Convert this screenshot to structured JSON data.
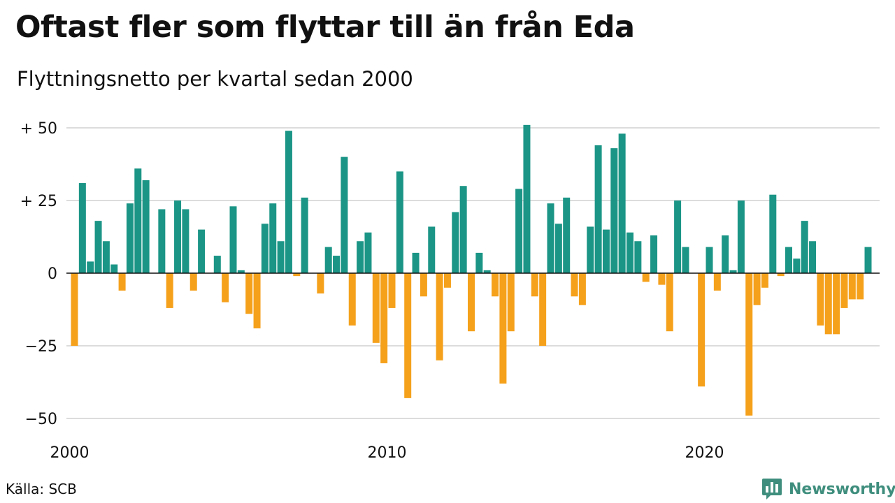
{
  "title": "Oftast fler som flyttar till än från Eda",
  "subtitle": "Flyttningsnetto per kvartal sedan 2000",
  "source": "Källa: SCB",
  "brand": {
    "name": "Newsworthy",
    "icon": "bar-chart-speech-bubble-icon"
  },
  "colors": {
    "positive": "#1b9586",
    "negative": "#f5a11c",
    "grid": "#dcdcdc",
    "brand": "#3f8e7d"
  },
  "chart_data": {
    "type": "bar",
    "x_start": 2000,
    "x_step": "quarter",
    "xticks": [
      {
        "value": 2000,
        "label": "2000"
      },
      {
        "value": 2010,
        "label": "2010"
      },
      {
        "value": 2020,
        "label": "2020"
      }
    ],
    "yticks": [
      {
        "value": 50,
        "label": "+ 50"
      },
      {
        "value": 25,
        "label": "+ 25"
      },
      {
        "value": 0,
        "label": "0"
      },
      {
        "value": -25,
        "label": "−25"
      },
      {
        "value": -50,
        "label": "−50"
      }
    ],
    "ylim": [
      -55,
      55
    ],
    "grid": true,
    "values": [
      -25,
      31,
      4,
      18,
      11,
      3,
      -6,
      24,
      36,
      32,
      0,
      22,
      -12,
      25,
      22,
      -6,
      15,
      0,
      6,
      -10,
      23,
      1,
      -14,
      -19,
      17,
      24,
      11,
      49,
      -1,
      26,
      0,
      -7,
      9,
      6,
      40,
      -18,
      11,
      14,
      -24,
      -31,
      -12,
      35,
      -43,
      7,
      -8,
      16,
      -30,
      -5,
      21,
      30,
      -20,
      7,
      1,
      -8,
      -38,
      -20,
      29,
      51,
      -8,
      -25,
      24,
      17,
      26,
      -8,
      -11,
      16,
      44,
      15,
      43,
      48,
      14,
      11,
      -3,
      13,
      -4,
      -20,
      25,
      9,
      0,
      -39,
      9,
      -6,
      13,
      1,
      25,
      -49,
      -11,
      -5,
      27,
      -1,
      9,
      5,
      18,
      11,
      -18,
      -21,
      -21,
      -12,
      -9,
      -9,
      9
    ]
  }
}
